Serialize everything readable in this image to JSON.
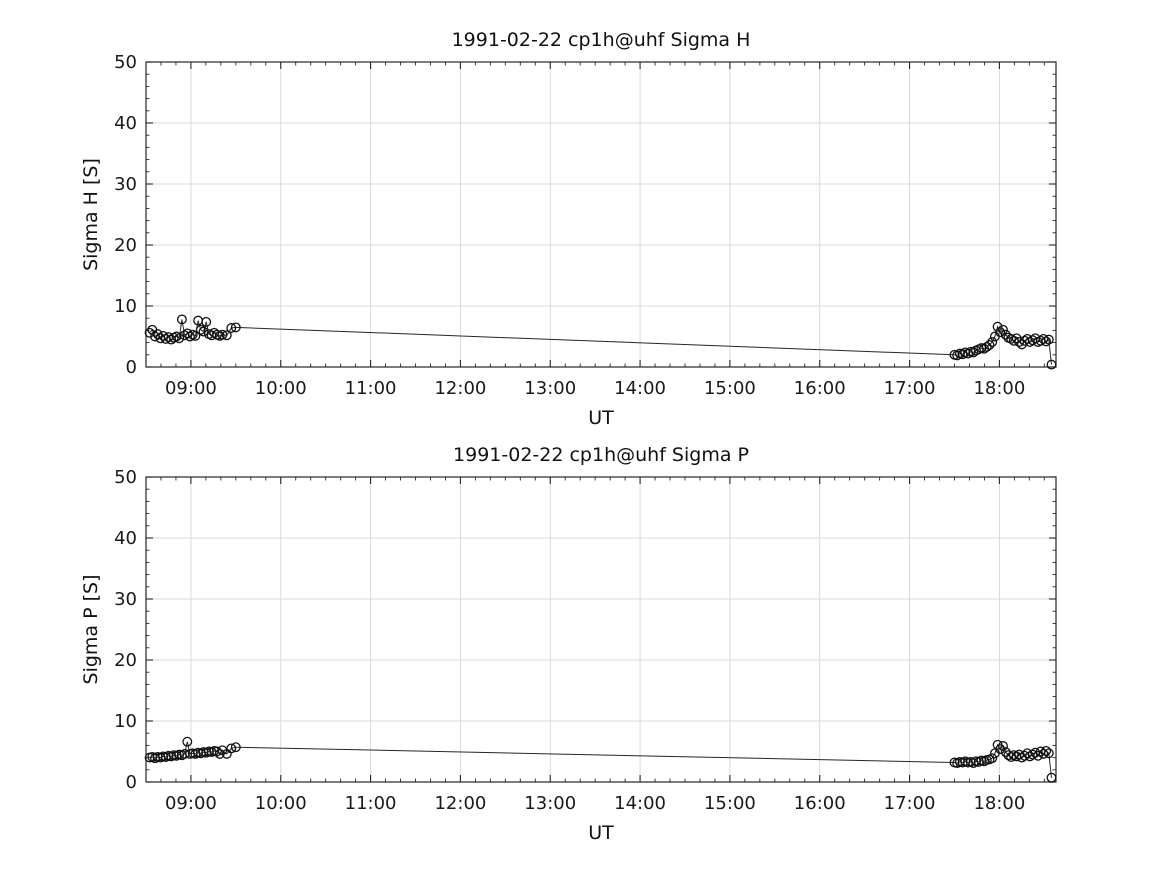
{
  "figure": {
    "background": "#ffffff",
    "foreground": "#111111",
    "grid_color": "#d9d9d9"
  },
  "chart_data": [
    {
      "type": "scatter",
      "title": "1991-02-22  cp1h@uhf Sigma H",
      "xlabel": "UT",
      "ylabel": "Sigma H [S]",
      "xlim": [
        8.5,
        18.63
      ],
      "ylim": [
        0,
        50
      ],
      "grid": true,
      "legend": "none",
      "marker": "open-circle",
      "line_between_points": true,
      "xticks": {
        "values": [
          9,
          10,
          11,
          12,
          13,
          14,
          15,
          16,
          17,
          18
        ],
        "labels": [
          "09:00",
          "10:00",
          "11:00",
          "12:00",
          "13:00",
          "14:00",
          "15:00",
          "16:00",
          "17:00",
          "18:00"
        ]
      },
      "x_minor_step": 0.1666667,
      "yticks": {
        "values": [
          0,
          10,
          20,
          30,
          40,
          50
        ],
        "labels": [
          "0",
          "10",
          "20",
          "30",
          "40",
          "50"
        ]
      },
      "y_minor_step": 2,
      "points": [
        [
          8.54,
          5.6
        ],
        [
          8.57,
          6.1
        ],
        [
          8.6,
          5.0
        ],
        [
          8.63,
          5.4
        ],
        [
          8.66,
          4.7
        ],
        [
          8.69,
          5.1
        ],
        [
          8.72,
          4.6
        ],
        [
          8.75,
          4.9
        ],
        [
          8.78,
          4.5
        ],
        [
          8.81,
          4.8
        ],
        [
          8.84,
          5.0
        ],
        [
          8.87,
          4.7
        ],
        [
          8.9,
          7.8
        ],
        [
          8.93,
          5.2
        ],
        [
          8.96,
          5.5
        ],
        [
          8.99,
          5.0
        ],
        [
          9.02,
          5.3
        ],
        [
          9.05,
          5.1
        ],
        [
          9.08,
          7.6
        ],
        [
          9.11,
          6.1
        ],
        [
          9.14,
          5.8
        ],
        [
          9.17,
          7.4
        ],
        [
          9.2,
          5.4
        ],
        [
          9.23,
          5.2
        ],
        [
          9.26,
          5.6
        ],
        [
          9.29,
          5.3
        ],
        [
          9.32,
          5.1
        ],
        [
          9.35,
          5.3
        ],
        [
          9.4,
          5.2
        ],
        [
          9.45,
          6.4
        ],
        [
          9.5,
          6.5
        ],
        [
          17.5,
          2.0
        ],
        [
          17.53,
          1.9
        ],
        [
          17.56,
          2.2
        ],
        [
          17.59,
          2.1
        ],
        [
          17.62,
          2.4
        ],
        [
          17.65,
          2.2
        ],
        [
          17.68,
          2.5
        ],
        [
          17.71,
          2.4
        ],
        [
          17.74,
          2.7
        ],
        [
          17.77,
          2.9
        ],
        [
          17.8,
          3.1
        ],
        [
          17.83,
          3.0
        ],
        [
          17.86,
          3.3
        ],
        [
          17.89,
          3.6
        ],
        [
          17.92,
          4.1
        ],
        [
          17.95,
          5.0
        ],
        [
          17.98,
          6.6
        ],
        [
          18.01,
          5.7
        ],
        [
          18.04,
          6.1
        ],
        [
          18.07,
          5.3
        ],
        [
          18.1,
          4.8
        ],
        [
          18.13,
          4.6
        ],
        [
          18.16,
          4.3
        ],
        [
          18.19,
          4.7
        ],
        [
          18.22,
          4.1
        ],
        [
          18.25,
          3.7
        ],
        [
          18.28,
          4.3
        ],
        [
          18.31,
          4.6
        ],
        [
          18.34,
          4.1
        ],
        [
          18.37,
          4.4
        ],
        [
          18.4,
          4.7
        ],
        [
          18.43,
          4.1
        ],
        [
          18.46,
          4.3
        ],
        [
          18.49,
          4.6
        ],
        [
          18.52,
          4.2
        ],
        [
          18.55,
          4.5
        ],
        [
          18.58,
          0.4
        ]
      ]
    },
    {
      "type": "scatter",
      "title": "1991-02-22  cp1h@uhf Sigma P",
      "xlabel": "UT",
      "ylabel": "Sigma P [S]",
      "xlim": [
        8.5,
        18.63
      ],
      "ylim": [
        0,
        50
      ],
      "grid": true,
      "legend": "none",
      "marker": "open-circle",
      "line_between_points": true,
      "xticks": {
        "values": [
          9,
          10,
          11,
          12,
          13,
          14,
          15,
          16,
          17,
          18
        ],
        "labels": [
          "09:00",
          "10:00",
          "11:00",
          "12:00",
          "13:00",
          "14:00",
          "15:00",
          "16:00",
          "17:00",
          "18:00"
        ]
      },
      "x_minor_step": 0.1666667,
      "yticks": {
        "values": [
          0,
          10,
          20,
          30,
          40,
          50
        ],
        "labels": [
          "0",
          "10",
          "20",
          "30",
          "40",
          "50"
        ]
      },
      "y_minor_step": 2,
      "points": [
        [
          8.54,
          4.0
        ],
        [
          8.57,
          4.1
        ],
        [
          8.6,
          3.9
        ],
        [
          8.63,
          4.1
        ],
        [
          8.66,
          4.0
        ],
        [
          8.69,
          4.2
        ],
        [
          8.72,
          4.1
        ],
        [
          8.75,
          4.3
        ],
        [
          8.78,
          4.2
        ],
        [
          8.81,
          4.4
        ],
        [
          8.84,
          4.3
        ],
        [
          8.87,
          4.5
        ],
        [
          8.9,
          4.4
        ],
        [
          8.93,
          4.6
        ],
        [
          8.96,
          6.6
        ],
        [
          8.99,
          4.6
        ],
        [
          9.02,
          4.7
        ],
        [
          9.05,
          4.6
        ],
        [
          9.08,
          4.8
        ],
        [
          9.11,
          4.7
        ],
        [
          9.14,
          4.9
        ],
        [
          9.17,
          4.8
        ],
        [
          9.2,
          5.0
        ],
        [
          9.23,
          4.9
        ],
        [
          9.26,
          5.1
        ],
        [
          9.29,
          5.0
        ],
        [
          9.32,
          4.6
        ],
        [
          9.35,
          5.2
        ],
        [
          9.4,
          4.6
        ],
        [
          9.45,
          5.5
        ],
        [
          9.5,
          5.7
        ],
        [
          17.5,
          3.2
        ],
        [
          17.53,
          3.1
        ],
        [
          17.56,
          3.3
        ],
        [
          17.59,
          3.2
        ],
        [
          17.62,
          3.4
        ],
        [
          17.65,
          3.2
        ],
        [
          17.68,
          3.3
        ],
        [
          17.71,
          3.1
        ],
        [
          17.74,
          3.4
        ],
        [
          17.77,
          3.3
        ],
        [
          17.8,
          3.5
        ],
        [
          17.83,
          3.4
        ],
        [
          17.86,
          3.6
        ],
        [
          17.89,
          3.7
        ],
        [
          17.92,
          3.9
        ],
        [
          17.95,
          4.7
        ],
        [
          17.98,
          6.1
        ],
        [
          18.01,
          5.4
        ],
        [
          18.04,
          5.9
        ],
        [
          18.07,
          4.9
        ],
        [
          18.1,
          4.4
        ],
        [
          18.13,
          4.1
        ],
        [
          18.16,
          4.4
        ],
        [
          18.19,
          4.2
        ],
        [
          18.22,
          4.5
        ],
        [
          18.25,
          4.0
        ],
        [
          18.28,
          4.3
        ],
        [
          18.31,
          4.7
        ],
        [
          18.34,
          4.2
        ],
        [
          18.37,
          4.5
        ],
        [
          18.4,
          4.8
        ],
        [
          18.43,
          4.3
        ],
        [
          18.46,
          5.0
        ],
        [
          18.49,
          4.6
        ],
        [
          18.52,
          5.1
        ],
        [
          18.55,
          4.7
        ],
        [
          18.58,
          0.7
        ]
      ]
    }
  ]
}
